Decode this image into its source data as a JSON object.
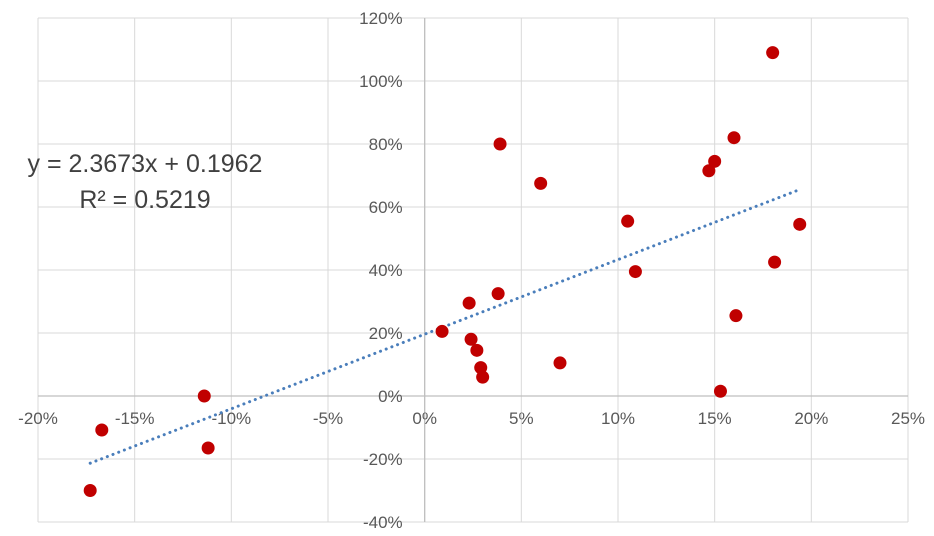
{
  "chart_data": {
    "type": "scatter",
    "xlim": [
      -0.2,
      0.25
    ],
    "ylim": [
      -0.4,
      1.2
    ],
    "x_ticks": [
      -0.2,
      -0.15,
      -0.1,
      -0.05,
      0.0,
      0.05,
      0.1,
      0.15,
      0.2,
      0.25
    ],
    "y_ticks": [
      -0.4,
      -0.2,
      0.0,
      0.2,
      0.4,
      0.6,
      0.8,
      1.0,
      1.2
    ],
    "x_tick_labels": [
      "-20%",
      "-15%",
      "-10%",
      "-5%",
      "0%",
      "5%",
      "10%",
      "15%",
      "20%",
      "25%"
    ],
    "y_tick_labels": [
      "-40%",
      "-20%",
      "0%",
      "20%",
      "40%",
      "60%",
      "80%",
      "100%",
      "120%"
    ],
    "grid": true,
    "series": [
      {
        "color": "#C00000",
        "points": [
          {
            "x": -0.173,
            "y": -0.3
          },
          {
            "x": -0.167,
            "y": -0.108
          },
          {
            "x": -0.114,
            "y": 0.0
          },
          {
            "x": -0.112,
            "y": -0.165
          },
          {
            "x": 0.009,
            "y": 0.205
          },
          {
            "x": 0.023,
            "y": 0.295
          },
          {
            "x": 0.024,
            "y": 0.18
          },
          {
            "x": 0.027,
            "y": 0.145
          },
          {
            "x": 0.029,
            "y": 0.09
          },
          {
            "x": 0.03,
            "y": 0.06
          },
          {
            "x": 0.038,
            "y": 0.325
          },
          {
            "x": 0.039,
            "y": 0.8
          },
          {
            "x": 0.06,
            "y": 0.675
          },
          {
            "x": 0.07,
            "y": 0.105
          },
          {
            "x": 0.105,
            "y": 0.555
          },
          {
            "x": 0.109,
            "y": 0.395
          },
          {
            "x": 0.147,
            "y": 0.715
          },
          {
            "x": 0.15,
            "y": 0.745
          },
          {
            "x": 0.153,
            "y": 0.015
          },
          {
            "x": 0.16,
            "y": 0.82
          },
          {
            "x": 0.161,
            "y": 0.255
          },
          {
            "x": 0.18,
            "y": 1.09
          },
          {
            "x": 0.181,
            "y": 0.425
          },
          {
            "x": 0.194,
            "y": 0.545
          }
        ]
      }
    ],
    "trendline": {
      "type": "linear",
      "slope": 2.3673,
      "intercept": 0.1962,
      "x_start": -0.173,
      "x_end": 0.194,
      "color": "#4A7EBB",
      "equation": "y = 2.3673x + 0.1962",
      "r_squared": "R² = 0.5219"
    }
  }
}
